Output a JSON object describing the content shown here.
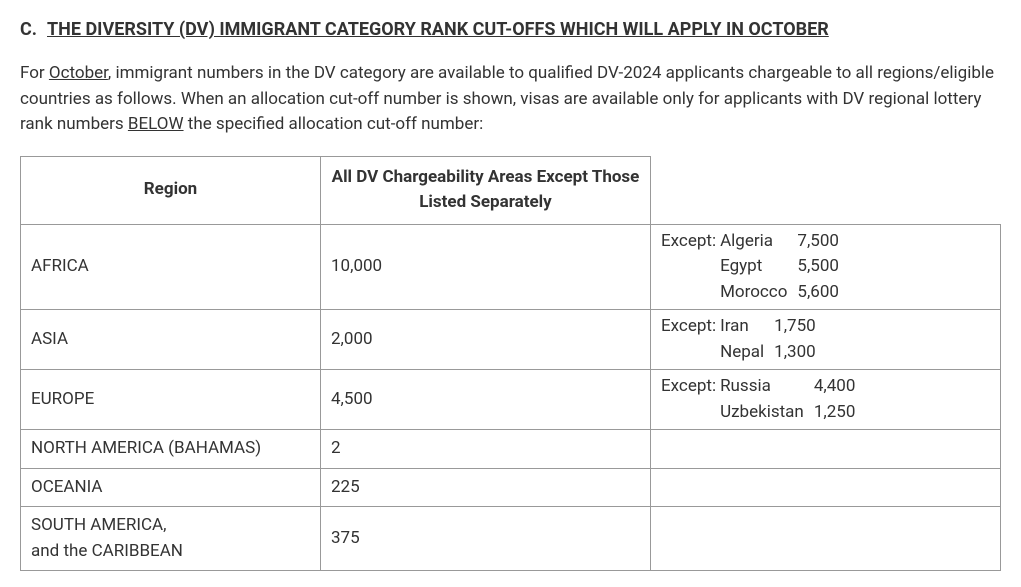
{
  "heading": {
    "label": "C.",
    "title": "THE DIVERSITY (DV) IMMIGRANT CATEGORY RANK CUT-OFFS WHICH WILL APPLY IN OCTOBER"
  },
  "intro": {
    "part1": "For ",
    "month": "October",
    "part2": ", immigrant numbers in the DV category are available to qualified DV-2024 applicants chargeable to all regions/eligible countries as follows. When an allocation cut-off number is shown, visas are available only for applicants with DV regional lottery rank numbers ",
    "below": "BELOW",
    "part3": " the specified allocation cut-off number:"
  },
  "table": {
    "headers": {
      "region": "Region",
      "main": "All DV Chargeability Areas Except Those Listed Separately"
    },
    "rows": [
      {
        "region": "AFRICA",
        "main": "10,000",
        "exceptions": [
          {
            "label": "Except:",
            "country": "Algeria",
            "value": "7,500"
          },
          {
            "label": "",
            "country": "Egypt",
            "value": "5,500"
          },
          {
            "label": "",
            "country": "Morocco",
            "value": "5,600"
          }
        ]
      },
      {
        "region": "ASIA",
        "main": "2,000",
        "exceptions": [
          {
            "label": "Except:",
            "country": "Iran",
            "value": "1,750"
          },
          {
            "label": "",
            "country": "Nepal",
            "value": "1,300"
          }
        ]
      },
      {
        "region": "EUROPE",
        "main": "4,500",
        "exceptions": [
          {
            "label": "Except:",
            "country": "Russia",
            "value": "4,400"
          },
          {
            "label": "",
            "country": "Uzbekistan",
            "value": "1,250"
          }
        ]
      },
      {
        "region": "NORTH AMERICA (BAHAMAS)",
        "main": "2",
        "exceptions": []
      },
      {
        "region": "OCEANIA",
        "main": "225",
        "exceptions": []
      },
      {
        "region": "SOUTH AMERICA,\nand the CARIBBEAN",
        "main": "375",
        "exceptions": []
      }
    ]
  }
}
